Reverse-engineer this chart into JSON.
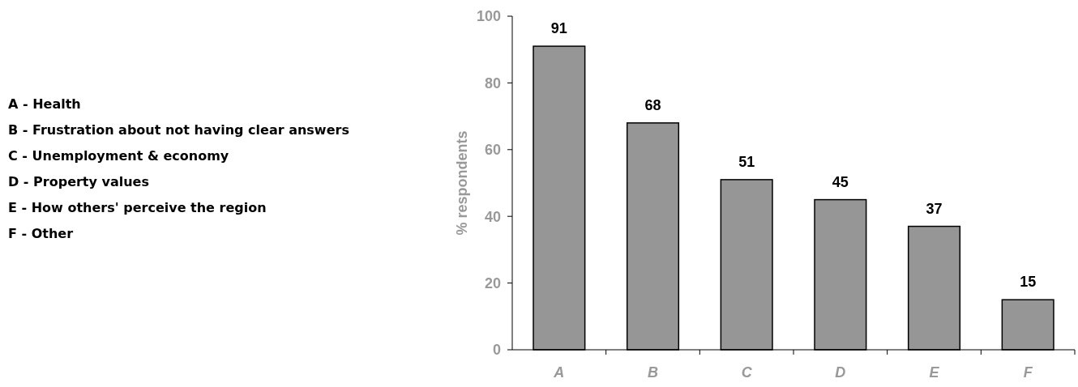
{
  "chart_data": {
    "type": "bar",
    "ylabel": "% respondents",
    "categories": [
      "A",
      "B",
      "C",
      "D",
      "E",
      "F"
    ],
    "values": [
      91,
      68,
      51,
      45,
      37,
      15
    ],
    "color": "#969696",
    "ylim": [
      0,
      100
    ],
    "yticks": [
      0,
      20,
      40,
      60,
      80,
      100
    ],
    "data_labels": true,
    "annotations": [
      "A - Health",
      "B - Frustration about not having clear answers",
      "C - Unemployment & economy",
      "D - Property values",
      "E - How others' perceive the region",
      "F - Other"
    ]
  }
}
